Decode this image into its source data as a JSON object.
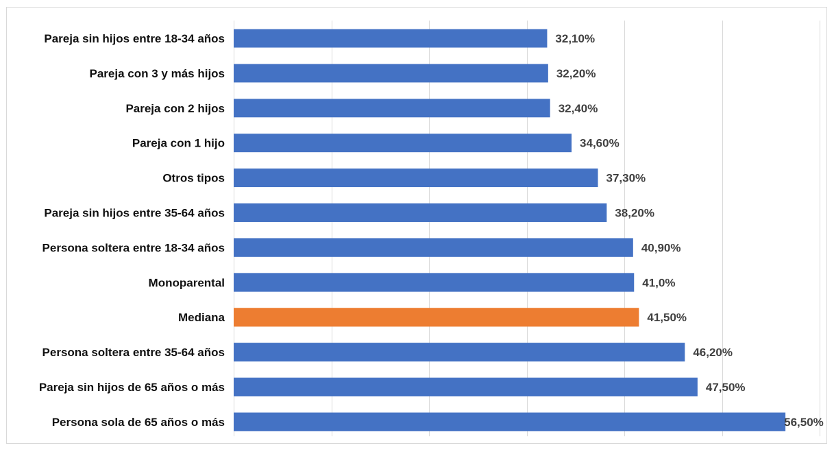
{
  "chart_data": {
    "type": "bar",
    "orientation": "horizontal",
    "title": "",
    "xlabel": "",
    "ylabel": "",
    "xlim": [
      0,
      60
    ],
    "grid": true,
    "legend": "none",
    "categories": [
      "Pareja sin hijos entre 18-34 años",
      "Pareja con 3 y más hijos",
      "Pareja con 2 hijos",
      "Pareja con 1 hijo",
      "Otros tipos",
      "Pareja sin hijos entre 35-64 años",
      "Persona soltera entre 18-34 años",
      "Monoparental",
      "Mediana",
      "Persona soltera entre 35-64 años",
      "Pareja sin hijos de 65 años o más",
      "Persona sola de 65 años o más"
    ],
    "values": [
      32.1,
      32.2,
      32.4,
      34.6,
      37.3,
      38.2,
      40.9,
      41.0,
      41.5,
      46.2,
      47.5,
      56.5
    ],
    "value_labels": [
      "32,10%",
      "32,20%",
      "32,40%",
      "34,60%",
      "37,30%",
      "38,20%",
      "40,90%",
      "41,0%",
      "41,50%",
      "46,20%",
      "47,50%",
      "56,50%"
    ],
    "colors": {
      "default": "#4472c4",
      "highlight": "#ed7d31",
      "highlight_category": "Mediana"
    }
  }
}
